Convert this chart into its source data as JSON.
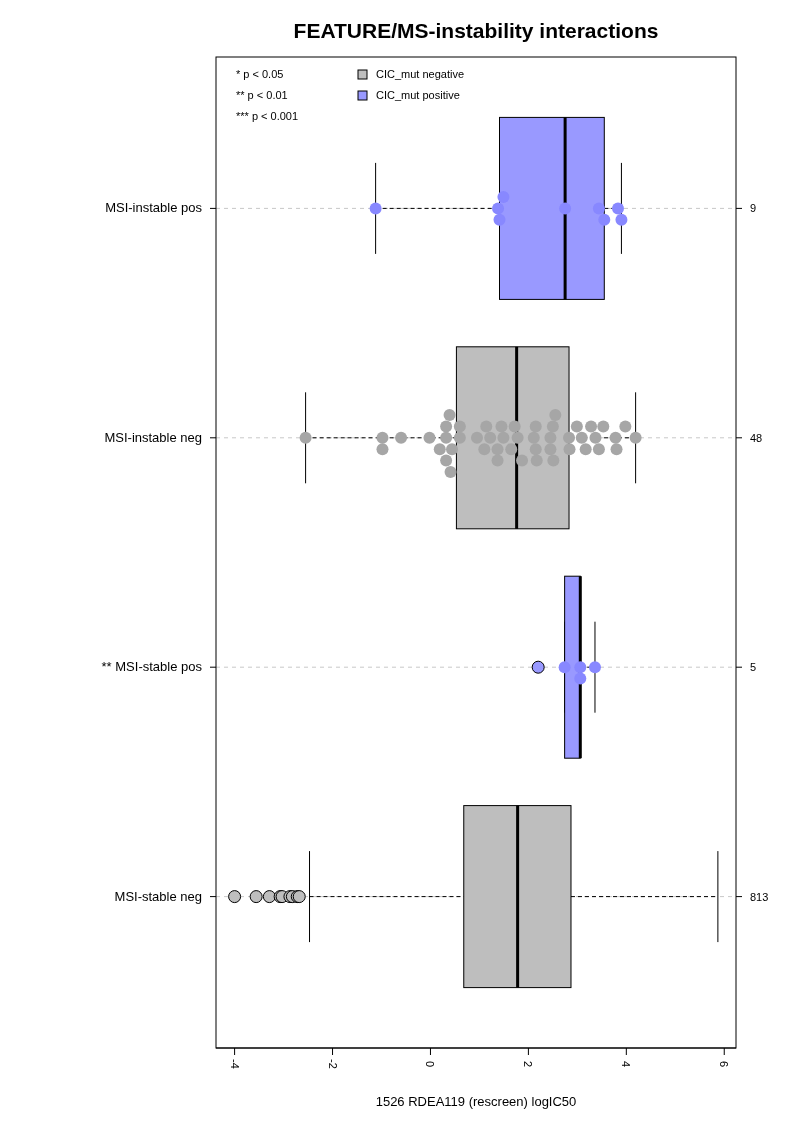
{
  "chart_data": {
    "type": "box",
    "title": "FEATURE/MS-instability interactions",
    "xlabel": "1526 RDEA119 (rescreen) logIC50",
    "orientation": "horizontal",
    "categories": [
      "MSI-instable pos",
      "MSI-instable neg",
      "** MSI-stable pos",
      "MSI-stable neg"
    ],
    "xlim": [
      -4.38,
      6.24
    ],
    "xticks": [
      -4,
      -2,
      0,
      2,
      4,
      6
    ],
    "grid": "y",
    "legend": "top left",
    "annotations": [
      "* p < 0.05",
      "** p < 0.01",
      "*** p < 0.001",
      "9",
      "48",
      "5",
      "813"
    ],
    "series": [
      {
        "name": "CIC_mut negative",
        "color": "#bebebe",
        "boxes": [
          null,
          {
            "low": -2.55,
            "q1": 0.53,
            "median": 1.76,
            "q3": 2.83,
            "high": 4.19
          },
          null,
          {
            "low": -2.47,
            "q1": 0.68,
            "median": 1.78,
            "q3": 2.87,
            "high": 5.87,
            "outliers": [
              -4.0,
              -3.56,
              -3.29,
              -3.07,
              -3.03,
              -2.87,
              -2.82,
              -2.72,
              -2.68
            ]
          }
        ]
      },
      {
        "name": "CIC_mut positive",
        "color": "#9999ff",
        "boxes": [
          {
            "low": -1.12,
            "q1": 1.41,
            "median": 2.75,
            "q3": 3.55,
            "high": 3.9
          },
          null,
          {
            "low": 2.74,
            "q1": 2.74,
            "median": 3.06,
            "q3": 3.06,
            "high": 3.36,
            "outliers": [
              2.2
            ]
          },
          null
        ]
      },
      {
        "type": "scatter",
        "color": "#8888ff",
        "x": [
          "MSI-instable pos",
          "MSI-instable pos",
          "MSI-instable pos",
          "MSI-instable pos",
          "MSI-instable pos",
          "MSI-instable pos",
          "MSI-instable pos",
          "MSI-instable pos",
          "MSI-instable pos",
          "** MSI-stable pos",
          "** MSI-stable pos",
          "** MSI-stable pos",
          "** MSI-stable pos"
        ],
        "values": [
          -1.12,
          1.41,
          1.38,
          1.49,
          2.75,
          3.44,
          3.55,
          3.83,
          3.9,
          2.74,
          3.06,
          3.06,
          3.36
        ]
      },
      {
        "type": "scatter",
        "color": "#a6a6a6",
        "x": [
          "MSI-instable neg",
          "MSI-instable neg",
          "MSI-instable neg",
          "MSI-instable neg",
          "MSI-instable neg",
          "MSI-instable neg",
          "MSI-instable neg",
          "MSI-instable neg",
          "MSI-instable neg",
          "MSI-instable neg",
          "MSI-instable neg",
          "MSI-instable neg",
          "MSI-instable neg",
          "MSI-instable neg",
          "MSI-instable neg",
          "MSI-instable neg",
          "MSI-instable neg",
          "MSI-instable neg",
          "MSI-instable neg",
          "MSI-instable neg",
          "MSI-instable neg",
          "MSI-instable neg",
          "MSI-instable neg",
          "MSI-instable neg",
          "MSI-instable neg",
          "MSI-instable neg",
          "MSI-instable neg",
          "MSI-instable neg",
          "MSI-instable neg",
          "MSI-instable neg",
          "MSI-instable neg",
          "MSI-instable neg",
          "MSI-instable neg",
          "MSI-instable neg",
          "MSI-instable neg",
          "MSI-instable neg",
          "MSI-instable neg",
          "MSI-instable neg",
          "MSI-instable neg",
          "MSI-instable neg",
          "MSI-instable neg",
          "MSI-instable neg",
          "MSI-instable neg",
          "MSI-instable neg",
          "MSI-instable neg",
          "MSI-instable neg",
          "MSI-instable neg",
          "MSI-instable neg"
        ],
        "values": [
          -2.55,
          -0.98,
          -0.98,
          -0.6,
          -0.02,
          0.19,
          0.32,
          0.32,
          0.32,
          0.39,
          0.41,
          0.44,
          0.6,
          0.6,
          0.95,
          1.1,
          1.14,
          1.22,
          1.37,
          1.37,
          1.45,
          1.49,
          1.65,
          1.72,
          1.78,
          1.87,
          2.11,
          2.15,
          2.15,
          2.17,
          2.45,
          2.45,
          2.5,
          2.51,
          2.55,
          2.83,
          2.84,
          2.99,
          3.09,
          3.17,
          3.28,
          3.37,
          3.44,
          3.53,
          3.78,
          3.8,
          3.98,
          4.19
        ]
      }
    ]
  }
}
